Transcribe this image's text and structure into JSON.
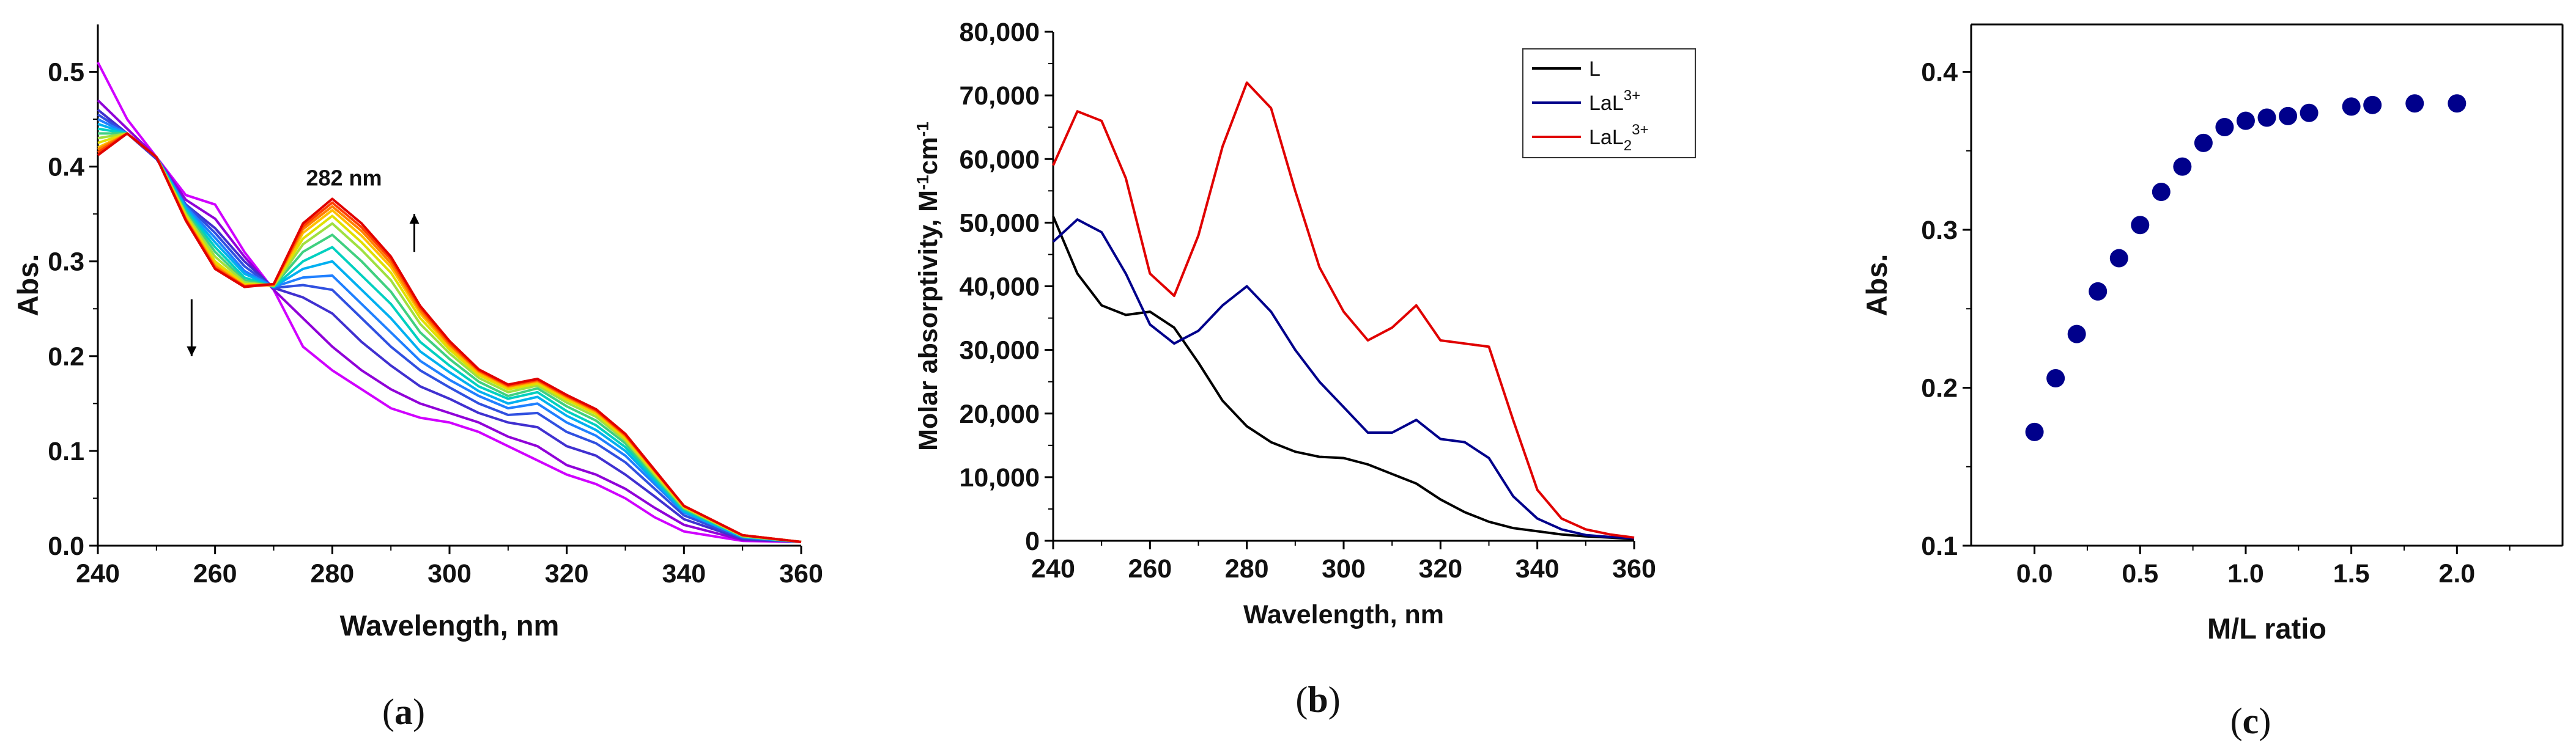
{
  "panels": {
    "a": {
      "label_open": "(",
      "label_letter": "a",
      "label_close": ")"
    },
    "b": {
      "label_open": "(",
      "label_letter": "b",
      "label_close": ")"
    },
    "c": {
      "label_open": "(",
      "label_letter": "c",
      "label_close": ")"
    }
  },
  "colors": {
    "axis": "#000000",
    "L": "#000000",
    "LaL3": "#00008b",
    "LaL23": "#e00000",
    "points": "#00008b",
    "arrow": "#000000"
  },
  "chart_data": [
    {
      "id": "a",
      "type": "line",
      "ylabel": "Abs.",
      "xlabel": "Wavelength, nm",
      "xlim": [
        240,
        360
      ],
      "ylim": [
        0.0,
        0.55
      ],
      "xticks": [
        "240",
        "260",
        "280",
        "300",
        "320",
        "340",
        "360"
      ],
      "yticks": [
        "0.0",
        "0.1",
        "0.2",
        "0.3",
        "0.4",
        "0.5"
      ],
      "annotations": [
        {
          "text": "282 nm",
          "x": 282,
          "y": 0.38
        }
      ],
      "arrows": [
        {
          "x": 294,
          "y_from": 0.31,
          "y_to": 0.35,
          "direction": "up"
        },
        {
          "x": 256,
          "y_from": 0.26,
          "y_to": 0.2,
          "direction": "down"
        }
      ],
      "series_colors": [
        "#d000ff",
        "#9000d8",
        "#4030d0",
        "#3050e0",
        "#2080ff",
        "#00b0f0",
        "#00d0c0",
        "#40d080",
        "#a0e040",
        "#e0e000",
        "#ffc000",
        "#ff8000",
        "#ff4000",
        "#e00000"
      ],
      "x": [
        240,
        245,
        250,
        255,
        260,
        265,
        270,
        275,
        280,
        285,
        290,
        295,
        300,
        305,
        310,
        315,
        320,
        325,
        330,
        335,
        340,
        350,
        360
      ],
      "series": [
        {
          "values": [
            0.51,
            0.45,
            0.41,
            0.37,
            0.36,
            0.31,
            0.27,
            0.21,
            0.185,
            0.165,
            0.145,
            0.135,
            0.13,
            0.12,
            0.105,
            0.09,
            0.075,
            0.065,
            0.05,
            0.03,
            0.015,
            0.005,
            0.004
          ]
        },
        {
          "values": [
            0.47,
            0.44,
            0.41,
            0.365,
            0.345,
            0.305,
            0.27,
            0.24,
            0.21,
            0.185,
            0.165,
            0.15,
            0.14,
            0.13,
            0.115,
            0.105,
            0.085,
            0.075,
            0.06,
            0.04,
            0.022,
            0.006,
            0.004
          ]
        },
        {
          "values": [
            0.46,
            0.435,
            0.408,
            0.36,
            0.335,
            0.3,
            0.272,
            0.262,
            0.245,
            0.215,
            0.19,
            0.168,
            0.155,
            0.14,
            0.13,
            0.125,
            0.105,
            0.095,
            0.075,
            0.052,
            0.028,
            0.007,
            0.004
          ]
        },
        {
          "values": [
            0.455,
            0.435,
            0.41,
            0.36,
            0.33,
            0.295,
            0.272,
            0.275,
            0.27,
            0.24,
            0.21,
            0.185,
            0.167,
            0.15,
            0.138,
            0.14,
            0.12,
            0.108,
            0.088,
            0.06,
            0.032,
            0.008,
            0.004
          ]
        },
        {
          "values": [
            0.45,
            0.435,
            0.41,
            0.358,
            0.325,
            0.29,
            0.273,
            0.283,
            0.285,
            0.255,
            0.225,
            0.195,
            0.175,
            0.158,
            0.145,
            0.15,
            0.13,
            0.116,
            0.095,
            0.065,
            0.035,
            0.009,
            0.004
          ]
        },
        {
          "values": [
            0.445,
            0.435,
            0.41,
            0.356,
            0.32,
            0.287,
            0.273,
            0.292,
            0.3,
            0.27,
            0.24,
            0.205,
            0.183,
            0.163,
            0.15,
            0.157,
            0.137,
            0.122,
            0.1,
            0.068,
            0.036,
            0.009,
            0.004
          ]
        },
        {
          "values": [
            0.44,
            0.435,
            0.41,
            0.354,
            0.315,
            0.283,
            0.273,
            0.3,
            0.315,
            0.285,
            0.255,
            0.215,
            0.19,
            0.168,
            0.155,
            0.162,
            0.142,
            0.127,
            0.104,
            0.071,
            0.038,
            0.01,
            0.004
          ]
        },
        {
          "values": [
            0.435,
            0.435,
            0.41,
            0.352,
            0.31,
            0.28,
            0.274,
            0.31,
            0.328,
            0.3,
            0.268,
            0.225,
            0.197,
            0.173,
            0.158,
            0.166,
            0.147,
            0.132,
            0.108,
            0.073,
            0.039,
            0.01,
            0.004
          ]
        },
        {
          "values": [
            0.43,
            0.435,
            0.41,
            0.35,
            0.305,
            0.278,
            0.274,
            0.318,
            0.34,
            0.312,
            0.28,
            0.234,
            0.203,
            0.177,
            0.162,
            0.169,
            0.151,
            0.136,
            0.111,
            0.075,
            0.04,
            0.01,
            0.004
          ]
        },
        {
          "values": [
            0.425,
            0.435,
            0.41,
            0.348,
            0.3,
            0.276,
            0.275,
            0.324,
            0.348,
            0.32,
            0.288,
            0.24,
            0.207,
            0.18,
            0.165,
            0.171,
            0.154,
            0.139,
            0.113,
            0.077,
            0.041,
            0.011,
            0.004
          ]
        },
        {
          "values": [
            0.42,
            0.435,
            0.41,
            0.346,
            0.297,
            0.275,
            0.275,
            0.33,
            0.354,
            0.327,
            0.294,
            0.245,
            0.21,
            0.182,
            0.167,
            0.173,
            0.156,
            0.141,
            0.115,
            0.078,
            0.041,
            0.011,
            0.004
          ]
        },
        {
          "values": [
            0.418,
            0.435,
            0.41,
            0.345,
            0.295,
            0.274,
            0.275,
            0.334,
            0.358,
            0.332,
            0.298,
            0.248,
            0.212,
            0.184,
            0.168,
            0.174,
            0.157,
            0.142,
            0.116,
            0.079,
            0.042,
            0.011,
            0.004
          ]
        },
        {
          "values": [
            0.415,
            0.435,
            0.41,
            0.344,
            0.293,
            0.274,
            0.276,
            0.337,
            0.362,
            0.336,
            0.302,
            0.251,
            0.214,
            0.185,
            0.169,
            0.175,
            0.158,
            0.143,
            0.117,
            0.079,
            0.042,
            0.011,
            0.004
          ]
        },
        {
          "values": [
            0.412,
            0.435,
            0.41,
            0.343,
            0.292,
            0.273,
            0.276,
            0.34,
            0.366,
            0.34,
            0.305,
            0.253,
            0.216,
            0.186,
            0.17,
            0.176,
            0.159,
            0.144,
            0.118,
            0.08,
            0.042,
            0.011,
            0.004
          ]
        }
      ]
    },
    {
      "id": "b",
      "type": "line",
      "ylabel": "Molar absorptivity, M",
      "ylabel_sup1": "-1",
      "ylabel_mid": "cm",
      "ylabel_sup2": "-1",
      "xlabel": "Wavelength, nm",
      "xlim": [
        240,
        360
      ],
      "ylim": [
        0,
        80000
      ],
      "xticks": [
        "240",
        "260",
        "280",
        "300",
        "320",
        "340",
        "360"
      ],
      "yticks": [
        "0",
        "10,000",
        "20,000",
        "30,000",
        "40,000",
        "50,000",
        "60,000",
        "70,000",
        "80,000"
      ],
      "legend_position": "top-right",
      "legend": [
        {
          "name": "L",
          "sup": "",
          "sub": ""
        },
        {
          "name": "LaL",
          "sup": "3+",
          "sub": ""
        },
        {
          "name": "LaL",
          "sup": "3+",
          "sub": "2"
        }
      ],
      "x": [
        240,
        245,
        250,
        255,
        260,
        265,
        270,
        275,
        280,
        285,
        290,
        295,
        300,
        305,
        310,
        315,
        320,
        325,
        330,
        335,
        340,
        345,
        350,
        355,
        360
      ],
      "series": [
        {
          "name": "L",
          "color": "#000000",
          "values": [
            51000,
            42000,
            37000,
            35500,
            36000,
            33500,
            28000,
            22000,
            18000,
            15500,
            14000,
            13200,
            13000,
            12000,
            10500,
            9000,
            6500,
            4500,
            3000,
            2000,
            1500,
            1000,
            700,
            500,
            300
          ]
        },
        {
          "name": "LaL3+",
          "color": "#00008b",
          "values": [
            47000,
            50500,
            48500,
            42000,
            34000,
            31000,
            33000,
            37000,
            40000,
            36000,
            30000,
            25000,
            21000,
            17000,
            17000,
            19000,
            16000,
            15500,
            13000,
            7000,
            3500,
            1800,
            900,
            600,
            400
          ]
        },
        {
          "name": "LaL23+",
          "color": "#e00000",
          "values": [
            59000,
            67500,
            66000,
            57000,
            42000,
            38500,
            48000,
            62000,
            72000,
            68000,
            55000,
            43000,
            36000,
            31500,
            33500,
            37000,
            31500,
            31000,
            30500,
            19000,
            8000,
            3500,
            1800,
            1000,
            500
          ]
        }
      ]
    },
    {
      "id": "c",
      "type": "scatter",
      "ylabel": "Abs.",
      "xlabel": "M/L ratio",
      "xlim": [
        -0.3,
        2.5
      ],
      "ylim": [
        0.1,
        0.43
      ],
      "xticks": [
        "0.0",
        "0.5",
        "1.0",
        "1.5",
        "2.0"
      ],
      "yticks": [
        "0.1",
        "0.2",
        "0.3",
        "0.4"
      ],
      "x": [
        0.0,
        0.1,
        0.2,
        0.3,
        0.4,
        0.5,
        0.6,
        0.7,
        0.8,
        0.9,
        1.0,
        1.1,
        1.2,
        1.3,
        1.5,
        1.6,
        1.8,
        2.0
      ],
      "y": [
        0.172,
        0.206,
        0.234,
        0.261,
        0.282,
        0.303,
        0.324,
        0.34,
        0.355,
        0.365,
        0.369,
        0.371,
        0.372,
        0.374,
        0.378,
        0.379,
        0.38,
        0.38
      ]
    }
  ]
}
